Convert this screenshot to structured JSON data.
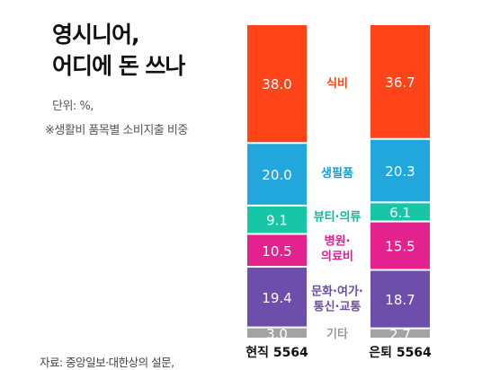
{
  "header": {
    "title_lines": [
      "영시니어,",
      "어디에 돈 쓰나"
    ],
    "unit": "단위: %,",
    "basis": "※생활비 품목별 소비지출 비중"
  },
  "footer": {
    "source": "자료: 중앙일보·대한상의 설문,"
  },
  "chart_data": {
    "type": "bar",
    "stacked": true,
    "categories": [
      "현직 5564",
      "은퇴 5564"
    ],
    "series": [
      {
        "name": "식비",
        "label_lines": [
          "식비"
        ],
        "color": "#ff4419",
        "label_color": "#ff4419",
        "values": [
          38.0,
          36.7
        ],
        "labels": [
          "38.0",
          "36.7"
        ]
      },
      {
        "name": "생필품",
        "label_lines": [
          "생필품"
        ],
        "color": "#21a7dc",
        "label_color": "#1a9bd6",
        "values": [
          20.0,
          20.3
        ],
        "labels": [
          "20.0",
          "20.3"
        ]
      },
      {
        "name": "뷰티·의류",
        "label_lines": [
          "뷰티·의류"
        ],
        "color": "#17c6a6",
        "label_color": "#10b89a",
        "values": [
          9.1,
          6.1
        ],
        "labels": [
          "9.1",
          "6.1"
        ]
      },
      {
        "name": "병원·의료비",
        "label_lines": [
          "병원·",
          "의료비"
        ],
        "color": "#e3228e",
        "label_color": "#e3228e",
        "values": [
          10.5,
          15.5
        ],
        "labels": [
          "10.5",
          "15.5"
        ]
      },
      {
        "name": "문화·여가·통신·교통",
        "label_lines": [
          "문화·여가·",
          "통신·교통"
        ],
        "color": "#6e4eab",
        "label_color": "#6e4eab",
        "values": [
          19.4,
          18.7
        ],
        "labels": [
          "19.4",
          "18.7"
        ]
      },
      {
        "name": "기타",
        "label_lines": [
          "기타"
        ],
        "color": "#a3a3a3",
        "label_color": "#999999",
        "values": [
          3.0,
          2.7
        ],
        "labels": [
          "3.0",
          "2.7"
        ]
      }
    ],
    "ylim": [
      0,
      100
    ],
    "legend": "center-between-bars",
    "grid": false
  }
}
